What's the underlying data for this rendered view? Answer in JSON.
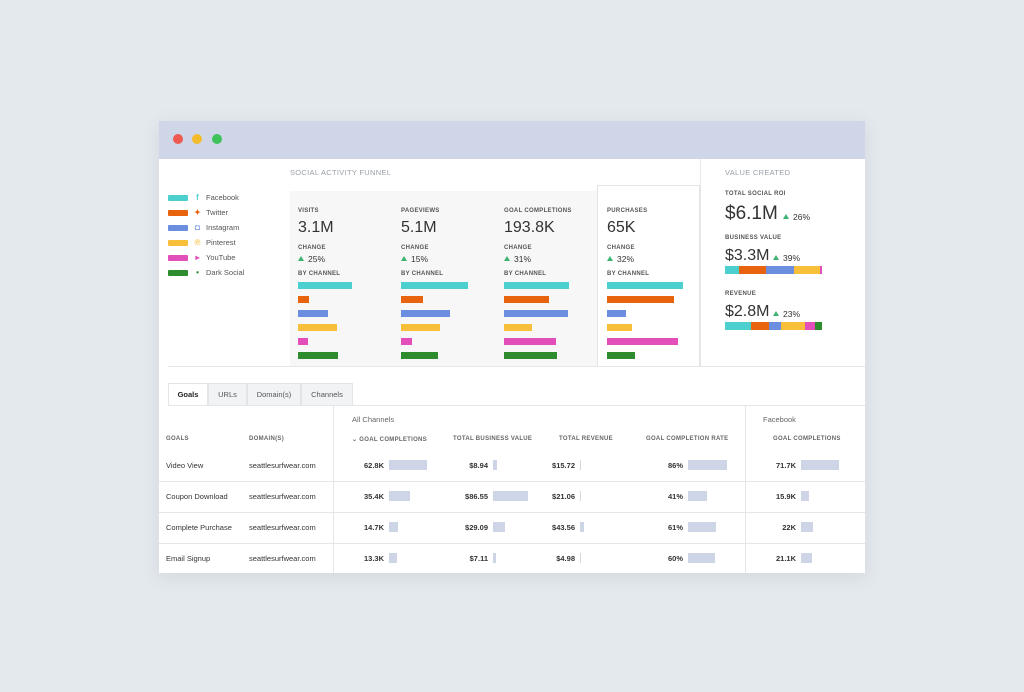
{
  "window": {
    "traffic_lights": [
      "#ee5a4f",
      "#f3bb2b",
      "#3ec25a"
    ]
  },
  "legend": [
    {
      "label": "Facebook",
      "icon": "facebook-icon",
      "glyph": "f",
      "color": "#4ccfcf"
    },
    {
      "label": "Twitter",
      "icon": "twitter-icon",
      "glyph": "✦",
      "color": "#e8630e"
    },
    {
      "label": "Instagram",
      "icon": "instagram-icon",
      "glyph": "◘",
      "color": "#6b8ee0"
    },
    {
      "label": "Pinterest",
      "icon": "pinterest-icon",
      "glyph": "℗",
      "color": "#f7bf3a"
    },
    {
      "label": "YouTube",
      "icon": "youtube-icon",
      "glyph": "▸",
      "color": "#e34fba"
    },
    {
      "label": "Dark Social",
      "icon": "dark-social-icon",
      "glyph": "•",
      "color": "#2e8b2e"
    }
  ],
  "funnel": {
    "title": "SOCIAL ACTIVITY FUNNEL",
    "change_label": "CHANGE",
    "by_channel_label": "BY CHANNEL",
    "stages": [
      {
        "label": "VISITS",
        "value": "3.1M",
        "change": "25%",
        "channel_bars": [
          0.7,
          0.14,
          0.39,
          0.51,
          0.13,
          0.52
        ]
      },
      {
        "label": "PAGEVIEWS",
        "value": "5.1M",
        "change": "15%",
        "channel_bars": [
          0.87,
          0.29,
          0.64,
          0.51,
          0.14,
          0.48
        ]
      },
      {
        "label": "GOAL COMPLETIONS",
        "value": "193.8K",
        "change": "31%",
        "channel_bars": [
          0.84,
          0.59,
          0.83,
          0.37,
          0.68,
          0.69
        ]
      },
      {
        "label": "PURCHASES",
        "value": "65K",
        "change": "32%",
        "channel_bars": [
          0.99,
          0.87,
          0.25,
          0.33,
          0.92,
          0.36
        ]
      }
    ]
  },
  "value_created": {
    "title": "VALUE CREATED",
    "metrics": [
      {
        "label": "TOTAL SOCIAL ROI",
        "value": "$6.1M",
        "change": "26%",
        "segments": []
      },
      {
        "label": "BUSINESS VALUE",
        "value": "$3.3M",
        "change": "39%",
        "segments": [
          0.14,
          0.28,
          0.29,
          0.27,
          0.02
        ]
      },
      {
        "label": "REVENUE",
        "value": "$2.8M",
        "change": "23%",
        "segments": [
          0.27,
          0.18,
          0.13,
          0.24,
          0.11,
          0.07
        ]
      }
    ]
  },
  "tabs": [
    "Goals",
    "URLs",
    "Domain(s)",
    "Channels"
  ],
  "table": {
    "group_all": "All Channels",
    "group_fb": "Facebook",
    "headers": {
      "goals": "GOALS",
      "domain": "DOMAIN(S)",
      "goal_completions": "GOAL COMPLETIONS",
      "total_business_value": "TOTAL BUSINESS VALUE",
      "total_revenue": "TOTAL REVENUE",
      "goal_completion_rate": "GOAL COMPLETION RATE",
      "fb_goal_completions": "GOAL COMPLETIONS"
    },
    "rows": [
      {
        "goal": "Video View",
        "domain": "seattlesurfwear.com",
        "completions": "62.8K",
        "completions_bar": 1.0,
        "business_value": "$8.94",
        "business_value_bar": 0.1,
        "revenue": "$15.72",
        "revenue_bar": 0.0,
        "rate": "86%",
        "rate_bar": 1.0,
        "fb_completions": "71.7K",
        "fb_completions_bar": 1.0
      },
      {
        "goal": "Coupon Download",
        "domain": "seattlesurfwear.com",
        "completions": "35.4K",
        "completions_bar": 0.56,
        "business_value": "$86.55",
        "business_value_bar": 1.0,
        "revenue": "$21.06",
        "revenue_bar": 0.0,
        "rate": "41%",
        "rate_bar": 0.48,
        "fb_completions": "15.9K",
        "fb_completions_bar": 0.22
      },
      {
        "goal": "Complete Purchase",
        "domain": "seattlesurfwear.com",
        "completions": "14.7K",
        "completions_bar": 0.23,
        "business_value": "$29.09",
        "business_value_bar": 0.34,
        "revenue": "$43.56",
        "revenue_bar": 0.12,
        "rate": "61%",
        "rate_bar": 0.71,
        "fb_completions": "22K",
        "fb_completions_bar": 0.31
      },
      {
        "goal": "Email Signup",
        "domain": "seattlesurfwear.com",
        "completions": "13.3K",
        "completions_bar": 0.21,
        "business_value": "$7.11",
        "business_value_bar": 0.08,
        "revenue": "$4.98",
        "revenue_bar": 0.0,
        "rate": "60%",
        "rate_bar": 0.7,
        "fb_completions": "21.1K",
        "fb_completions_bar": 0.29
      }
    ]
  }
}
